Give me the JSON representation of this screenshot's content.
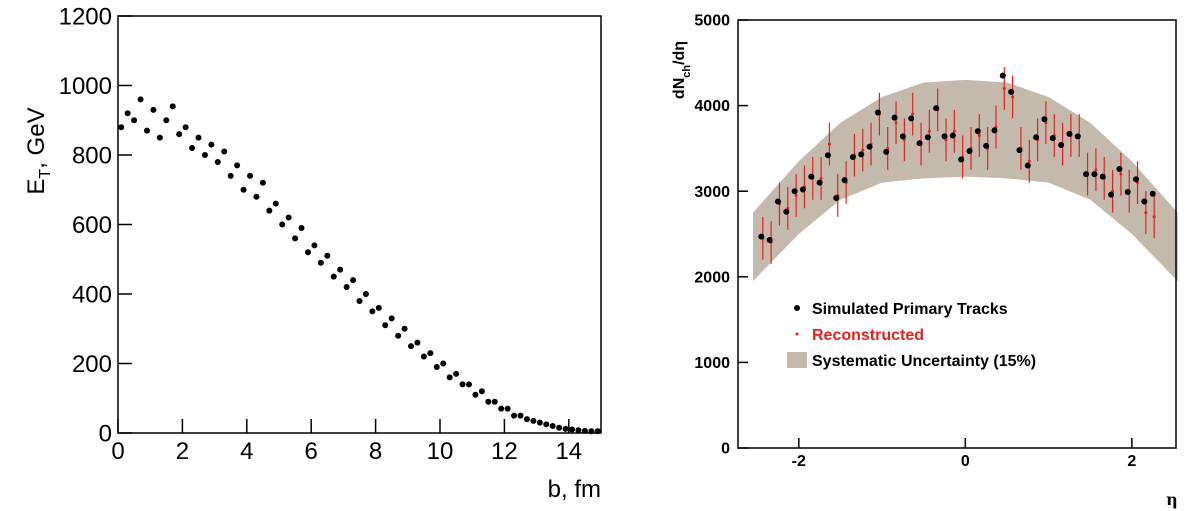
{
  "chart_data": [
    {
      "type": "scatter",
      "xlabel": "b, fm",
      "ylabel": {
        "main": "E",
        "sub": "T",
        "rest": ", GeV"
      },
      "xlim": [
        0,
        15
      ],
      "ylim": [
        0,
        1200
      ],
      "xticks": [
        0,
        2,
        4,
        6,
        8,
        10,
        12,
        14
      ],
      "yticks": [
        0,
        200,
        400,
        600,
        800,
        1000,
        1200
      ],
      "color": "#000000",
      "x": [
        0.1,
        0.3,
        0.5,
        0.7,
        0.9,
        1.1,
        1.3,
        1.5,
        1.7,
        1.9,
        2.1,
        2.3,
        2.5,
        2.7,
        2.9,
        3.1,
        3.3,
        3.5,
        3.7,
        3.9,
        4.1,
        4.3,
        4.5,
        4.7,
        4.9,
        5.1,
        5.3,
        5.5,
        5.7,
        5.9,
        6.1,
        6.3,
        6.5,
        6.7,
        6.9,
        7.1,
        7.3,
        7.5,
        7.7,
        7.9,
        8.1,
        8.3,
        8.5,
        8.7,
        8.9,
        9.1,
        9.3,
        9.5,
        9.7,
        9.9,
        10.1,
        10.3,
        10.5,
        10.7,
        10.9,
        11.1,
        11.3,
        11.5,
        11.7,
        11.9,
        12.1,
        12.3,
        12.5,
        12.7,
        12.9,
        13.1,
        13.3,
        13.5,
        13.7,
        13.9,
        14.1,
        14.3,
        14.5,
        14.7,
        14.9
      ],
      "y": [
        880,
        920,
        900,
        960,
        870,
        930,
        850,
        900,
        940,
        860,
        880,
        820,
        850,
        800,
        830,
        780,
        810,
        740,
        770,
        700,
        740,
        680,
        720,
        640,
        660,
        600,
        620,
        560,
        590,
        520,
        540,
        490,
        510,
        450,
        470,
        420,
        440,
        380,
        400,
        350,
        360,
        310,
        330,
        280,
        300,
        250,
        260,
        220,
        230,
        190,
        200,
        160,
        170,
        140,
        140,
        110,
        120,
        90,
        90,
        70,
        70,
        50,
        50,
        40,
        35,
        30,
        25,
        20,
        15,
        12,
        10,
        8,
        6,
        5,
        5
      ]
    },
    {
      "type": "errorbar",
      "xlabel": "η",
      "ylabel": {
        "main": "dN",
        "sub": "ch",
        "rest": "/dη"
      },
      "xlim": [
        -2.73,
        2.53
      ],
      "ylim": [
        0,
        5000
      ],
      "xticks": [
        -2,
        0,
        2
      ],
      "yticks": [
        0,
        1000,
        2000,
        3000,
        4000,
        5000
      ],
      "band": {
        "name": "Systematic Uncertainty (15%)",
        "color": "#c3baab",
        "x": [
          -2.55,
          -2,
          -1.5,
          -1,
          -0.5,
          0,
          0.5,
          1,
          1.5,
          2,
          2.55
        ],
        "high": [
          2750,
          3350,
          3800,
          4100,
          4270,
          4300,
          4270,
          4100,
          3800,
          3350,
          2750
        ],
        "low": [
          1950,
          2500,
          2900,
          3100,
          3150,
          3170,
          3150,
          3100,
          2900,
          2500,
          1950
        ]
      },
      "x": [
        -2.45,
        -2.35,
        -2.25,
        -2.15,
        -2.05,
        -1.95,
        -1.85,
        -1.75,
        -1.65,
        -1.55,
        -1.45,
        -1.35,
        -1.25,
        -1.15,
        -1.05,
        -0.95,
        -0.85,
        -0.75,
        -0.65,
        -0.55,
        -0.45,
        -0.35,
        -0.25,
        -0.15,
        -0.05,
        0.05,
        0.15,
        0.25,
        0.35,
        0.45,
        0.55,
        0.65,
        0.75,
        0.85,
        0.95,
        1.05,
        1.15,
        1.25,
        1.35,
        1.45,
        1.55,
        1.65,
        1.75,
        1.85,
        1.95,
        2.05,
        2.15,
        2.25
      ],
      "series": [
        {
          "name": "Simulated Primary Tracks",
          "color": "#000000",
          "values": [
            2470,
            2430,
            2880,
            2760,
            3000,
            3020,
            3170,
            3100,
            3420,
            2920,
            3130,
            3400,
            3430,
            3520,
            3920,
            3460,
            3860,
            3640,
            3850,
            3560,
            3630,
            3970,
            3640,
            3650,
            3370,
            3470,
            3700,
            3530,
            3710,
            4350,
            4160,
            3480,
            3300,
            3630,
            3840,
            3620,
            3540,
            3670,
            3640,
            3200,
            3200,
            3170,
            2960,
            3260,
            2990,
            3140,
            2880,
            2970
          ]
        },
        {
          "name": "Reconstructed",
          "color": "#e8201c",
          "values": [
            2450,
            2400,
            2850,
            2800,
            2950,
            3050,
            3150,
            3150,
            3550,
            2950,
            3100,
            3420,
            3480,
            3550,
            3900,
            3500,
            3800,
            3600,
            3900,
            3550,
            3700,
            3950,
            3600,
            3700,
            3400,
            3500,
            3650,
            3500,
            3750,
            4200,
            4100,
            3500,
            3350,
            3600,
            3800,
            3650,
            3550,
            3650,
            3650,
            3200,
            3250,
            3150,
            3000,
            3200,
            3000,
            3100,
            2750,
            2700
          ],
          "errors": [
            250,
            250,
            250,
            250,
            250,
            250,
            250,
            250,
            250,
            250,
            250,
            250,
            250,
            250,
            250,
            250,
            250,
            250,
            250,
            250,
            250,
            250,
            250,
            250,
            250,
            250,
            250,
            250,
            250,
            250,
            250,
            250,
            250,
            250,
            250,
            250,
            250,
            250,
            250,
            250,
            250,
            250,
            250,
            250,
            250,
            250,
            250,
            250
          ]
        }
      ]
    }
  ]
}
